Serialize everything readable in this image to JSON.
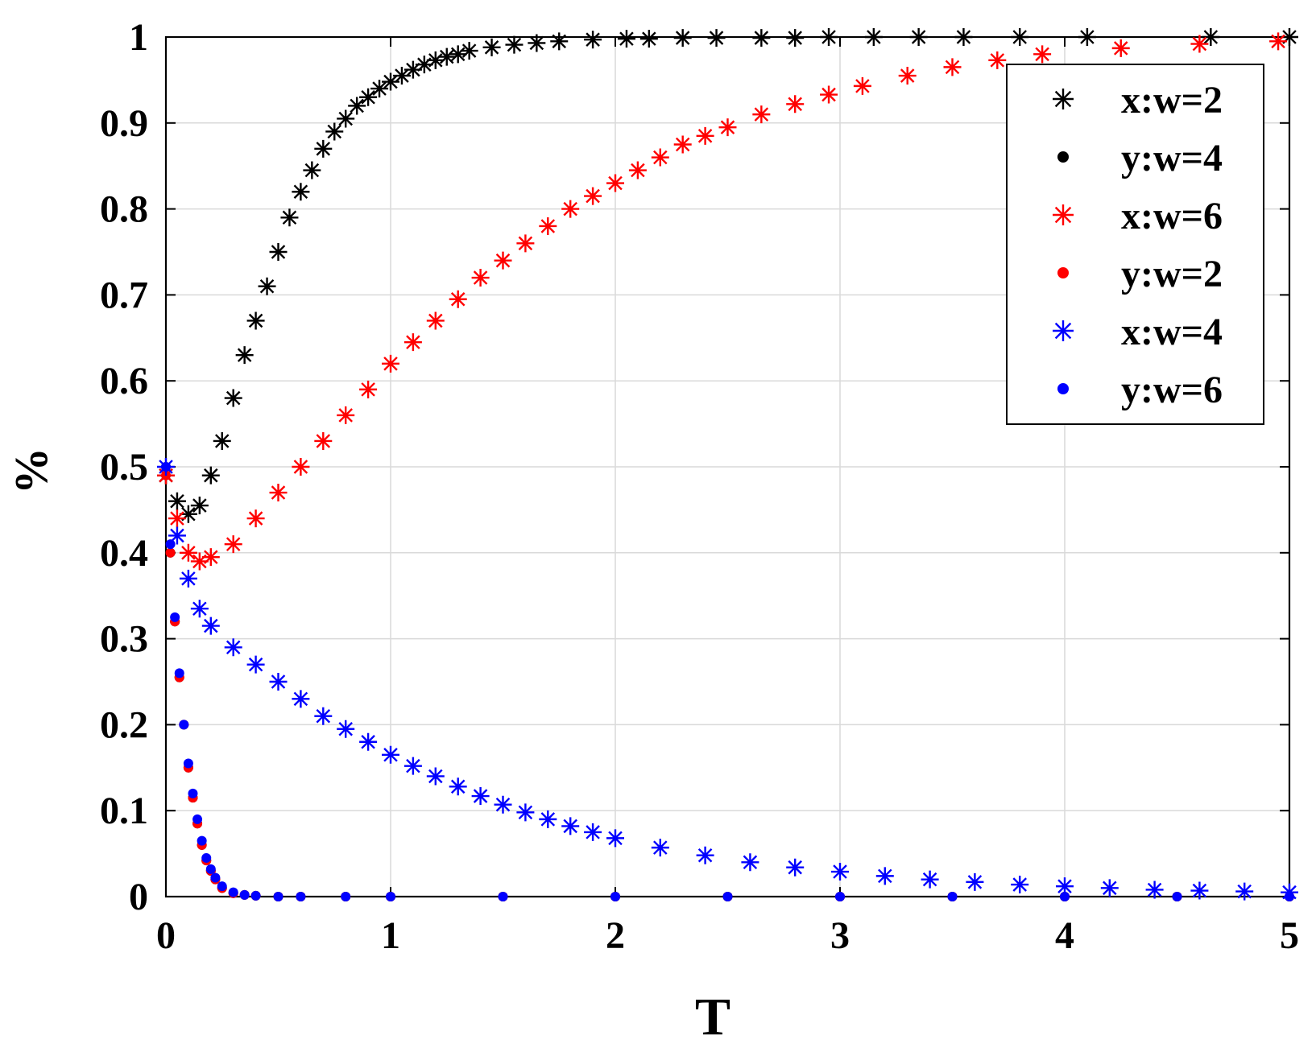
{
  "chart_data": {
    "type": "scatter",
    "title": "",
    "xlabel": "T",
    "ylabel": "%",
    "xlim": [
      0,
      5
    ],
    "ylim": [
      0,
      1
    ],
    "x_ticks": [
      "0",
      "1",
      "2",
      "3",
      "4",
      "5"
    ],
    "y_ticks": [
      "0",
      "0.1",
      "0.2",
      "0.3",
      "0.4",
      "0.5",
      "0.6",
      "0.7",
      "0.8",
      "0.9",
      "1"
    ],
    "grid": true,
    "legend_position": "top-right",
    "series": [
      {
        "name": "x:w=2",
        "marker": "asterisk",
        "color": "#000000",
        "x": [
          0,
          0.05,
          0.1,
          0.15,
          0.2,
          0.25,
          0.3,
          0.35,
          0.4,
          0.45,
          0.5,
          0.55,
          0.6,
          0.65,
          0.7,
          0.75,
          0.8,
          0.85,
          0.9,
          0.95,
          1.0,
          1.05,
          1.1,
          1.15,
          1.2,
          1.25,
          1.3,
          1.35,
          1.45,
          1.55,
          1.65,
          1.75,
          1.9,
          2.05,
          2.15,
          2.3,
          2.45,
          2.65,
          2.8,
          2.95,
          3.15,
          3.35,
          3.55,
          3.8,
          4.1,
          4.65,
          5.0
        ],
        "y": [
          0.49,
          0.46,
          0.445,
          0.455,
          0.49,
          0.53,
          0.58,
          0.63,
          0.67,
          0.71,
          0.75,
          0.79,
          0.82,
          0.845,
          0.87,
          0.89,
          0.905,
          0.92,
          0.93,
          0.94,
          0.948,
          0.955,
          0.962,
          0.968,
          0.973,
          0.977,
          0.98,
          0.984,
          0.988,
          0.991,
          0.993,
          0.995,
          0.997,
          0.998,
          0.998,
          0.999,
          0.999,
          0.999,
          0.999,
          1.0,
          1.0,
          1.0,
          1.0,
          1.0,
          1.0,
          1.0,
          1.0
        ]
      },
      {
        "name": "y:w=4",
        "marker": "dot",
        "color": "#000000",
        "x": [
          0,
          0.02,
          0.04,
          0.06,
          0.08,
          0.1,
          0.12,
          0.14,
          0.16,
          0.18,
          0.2,
          0.22,
          0.25,
          0.3,
          0.35,
          0.4,
          0.5,
          0.6,
          0.8,
          1.0,
          1.5,
          2.0,
          2.5,
          3.0,
          3.5,
          4.0,
          4.5,
          5.0
        ],
        "y": [
          0.5,
          0.4,
          0.32,
          0.255,
          0.2,
          0.15,
          0.115,
          0.085,
          0.06,
          0.042,
          0.03,
          0.02,
          0.01,
          0.004,
          0.002,
          0.001,
          0.0,
          0.0,
          0.0,
          0.0,
          0.0,
          0.0,
          0.0,
          0.0,
          0.0,
          0.0,
          0.0,
          0.0
        ]
      },
      {
        "name": "x:w=6",
        "marker": "asterisk",
        "color": "#ff0000",
        "x": [
          0,
          0.05,
          0.1,
          0.15,
          0.2,
          0.3,
          0.4,
          0.5,
          0.6,
          0.7,
          0.8,
          0.9,
          1.0,
          1.1,
          1.2,
          1.3,
          1.4,
          1.5,
          1.6,
          1.7,
          1.8,
          1.9,
          2.0,
          2.1,
          2.2,
          2.3,
          2.4,
          2.5,
          2.65,
          2.8,
          2.95,
          3.1,
          3.3,
          3.5,
          3.7,
          3.9,
          4.25,
          4.6,
          4.95
        ],
        "y": [
          0.49,
          0.44,
          0.4,
          0.39,
          0.395,
          0.41,
          0.44,
          0.47,
          0.5,
          0.53,
          0.56,
          0.59,
          0.62,
          0.645,
          0.67,
          0.695,
          0.72,
          0.74,
          0.76,
          0.78,
          0.8,
          0.815,
          0.83,
          0.845,
          0.86,
          0.875,
          0.885,
          0.895,
          0.91,
          0.922,
          0.933,
          0.943,
          0.955,
          0.965,
          0.973,
          0.98,
          0.987,
          0.992,
          0.995
        ]
      },
      {
        "name": "y:w=2",
        "marker": "dot",
        "color": "#ff0000",
        "x": [
          0,
          0.02,
          0.04,
          0.06,
          0.08,
          0.1,
          0.12,
          0.14,
          0.16,
          0.18,
          0.2,
          0.22,
          0.25,
          0.3,
          0.35,
          0.4,
          0.5,
          0.6,
          0.8,
          1.0,
          1.5,
          2.0,
          2.5,
          3.0,
          3.5,
          4.0,
          4.5,
          5.0
        ],
        "y": [
          0.49,
          0.4,
          0.32,
          0.255,
          0.2,
          0.15,
          0.115,
          0.085,
          0.06,
          0.042,
          0.03,
          0.02,
          0.01,
          0.004,
          0.002,
          0.001,
          0.0,
          0.0,
          0.0,
          0.0,
          0.0,
          0.0,
          0.0,
          0.0,
          0.0,
          0.0,
          0.0,
          0.0
        ]
      },
      {
        "name": "x:w=4",
        "marker": "asterisk",
        "color": "#0000ff",
        "x": [
          0,
          0.05,
          0.1,
          0.15,
          0.2,
          0.3,
          0.4,
          0.5,
          0.6,
          0.7,
          0.8,
          0.9,
          1.0,
          1.1,
          1.2,
          1.3,
          1.4,
          1.5,
          1.6,
          1.7,
          1.8,
          1.9,
          2.0,
          2.2,
          2.4,
          2.6,
          2.8,
          3.0,
          3.2,
          3.4,
          3.6,
          3.8,
          4.0,
          4.2,
          4.4,
          4.6,
          4.8,
          5.0
        ],
        "y": [
          0.5,
          0.42,
          0.37,
          0.335,
          0.315,
          0.29,
          0.27,
          0.25,
          0.23,
          0.21,
          0.195,
          0.18,
          0.165,
          0.152,
          0.14,
          0.128,
          0.117,
          0.107,
          0.098,
          0.09,
          0.082,
          0.075,
          0.068,
          0.057,
          0.048,
          0.04,
          0.034,
          0.029,
          0.024,
          0.02,
          0.017,
          0.014,
          0.012,
          0.01,
          0.008,
          0.007,
          0.006,
          0.005
        ]
      },
      {
        "name": "y:w=6",
        "marker": "dot",
        "color": "#0000ff",
        "x": [
          0,
          0.02,
          0.04,
          0.06,
          0.08,
          0.1,
          0.12,
          0.14,
          0.16,
          0.18,
          0.2,
          0.22,
          0.25,
          0.3,
          0.35,
          0.4,
          0.5,
          0.6,
          0.8,
          1.0,
          1.5,
          2.0,
          2.5,
          3.0,
          3.5,
          4.0,
          4.5,
          5.0
        ],
        "y": [
          0.5,
          0.41,
          0.325,
          0.26,
          0.2,
          0.155,
          0.12,
          0.09,
          0.065,
          0.045,
          0.032,
          0.022,
          0.012,
          0.005,
          0.002,
          0.001,
          0.0,
          0.0,
          0.0,
          0.0,
          0.0,
          0.0,
          0.0,
          0.0,
          0.0,
          0.0,
          0.0,
          0.0
        ]
      }
    ]
  }
}
